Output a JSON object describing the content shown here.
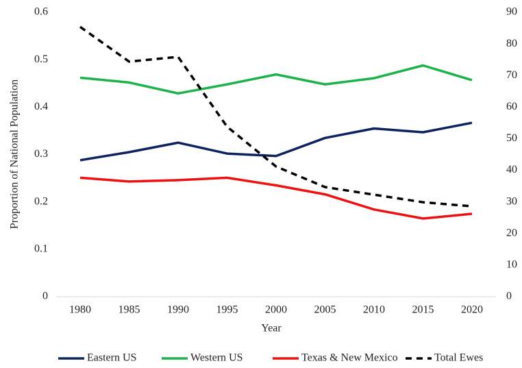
{
  "chart_data": {
    "type": "line",
    "x_label": "Year",
    "y_label": "Proportion of National Population",
    "categories": [
      "1980",
      "1985",
      "1990",
      "1995",
      "2000",
      "2005",
      "2010",
      "2015",
      "2020"
    ],
    "ylim": [
      0,
      0.6
    ],
    "yticks": [
      0,
      0.1,
      0.2,
      0.3,
      0.4,
      0.5,
      0.6
    ],
    "y2lim": [
      0,
      90
    ],
    "y2ticks": [
      0,
      10,
      20,
      30,
      40,
      50,
      60,
      70,
      80,
      90
    ],
    "legend": "bottom",
    "series": [
      {
        "name": "Eastern US",
        "color": "#0d2260",
        "style": "solid",
        "values": [
          0.288,
          0.305,
          0.325,
          0.302,
          0.297,
          0.335,
          0.355,
          0.347,
          0.367
        ]
      },
      {
        "name": "Western US",
        "color": "#1db34a",
        "style": "solid",
        "values": [
          0.462,
          0.452,
          0.429,
          0.448,
          0.469,
          0.448,
          0.461,
          0.488,
          0.457
        ]
      },
      {
        "name": "Texas & New Mexico",
        "color": "#ee1111",
        "style": "solid",
        "values": [
          0.251,
          0.243,
          0.246,
          0.251,
          0.235,
          0.216,
          0.184,
          0.165,
          0.175
        ]
      },
      {
        "name": "Total Ewes",
        "color": "#000000",
        "style": "dashed",
        "axis": "y2",
        "values": [
          85.4,
          74.4,
          75.9,
          53.8,
          41.2,
          34.7,
          32.3,
          29.9,
          28.6
        ]
      }
    ]
  }
}
